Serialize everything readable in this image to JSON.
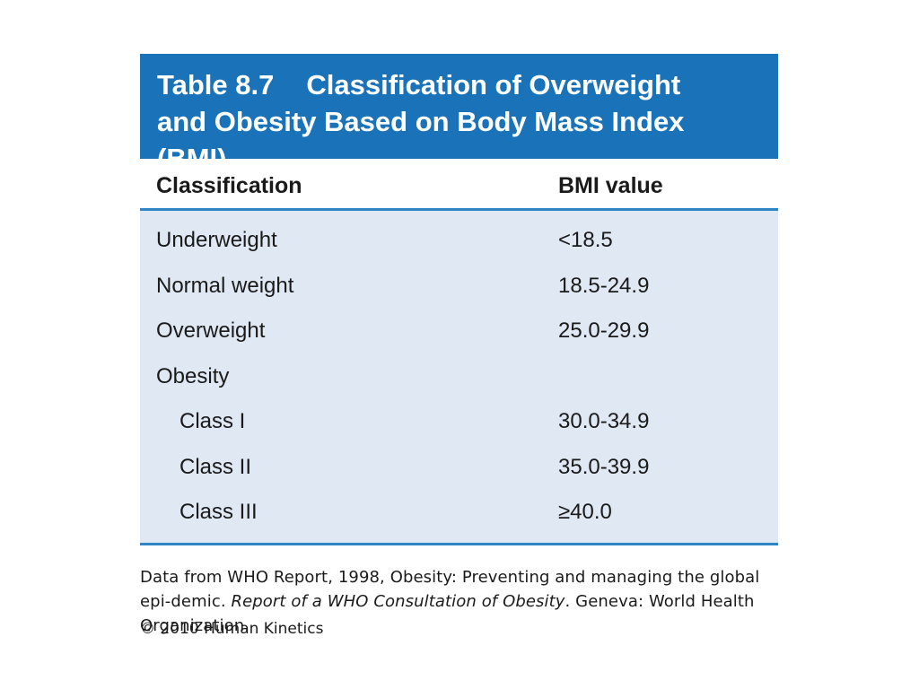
{
  "table": {
    "number": "Table 8.7",
    "title_line1": "Classification of Overweight",
    "title_line2": "and Obesity Based on Body Mass Index",
    "title_line3": "(BMI)",
    "headers": {
      "classification": "Classification",
      "bmi": "BMI value"
    },
    "rows": [
      {
        "label": "Underweight",
        "value": "<18.5"
      },
      {
        "label": "Normal weight",
        "value": "18.5-24.9"
      },
      {
        "label": "Overweight",
        "value": "25.0-29.9"
      },
      {
        "label": "Obesity",
        "value": ""
      },
      {
        "label": "Class I",
        "value": "30.0-34.9"
      },
      {
        "label": "Class II",
        "value": "35.0-39.9"
      },
      {
        "label": "Class III",
        "value": "≥40.0"
      }
    ]
  },
  "footnote": {
    "part1": "Data from WHO Report, 1998, Obesity: Preventing and managing the global epi-demic. ",
    "italic": "Report of a WHO Consultation of Obesity",
    "part2": ". Geneva: World Health Organization."
  },
  "copyright": "© 2010 Human Kinetics",
  "colors": {
    "title_band": "#1a73b9",
    "body_background": "#dfe8f3",
    "rule": "#2f84c6"
  }
}
